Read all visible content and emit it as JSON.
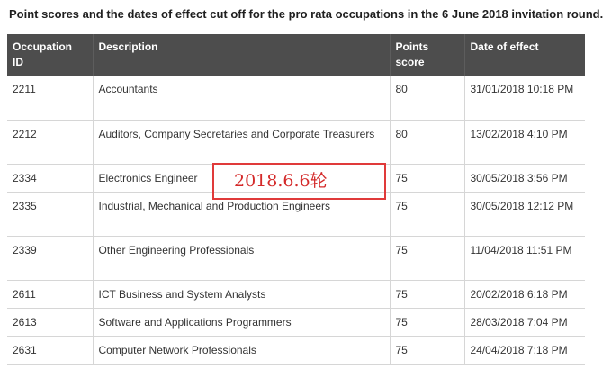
{
  "caption": "Point scores and the dates of effect cut off for the pro rata occupations in the 6 June 2018 invitation round.",
  "table": {
    "headers": {
      "occupation_id_line1": "Occupation",
      "occupation_id_line2": "ID",
      "description": "Description",
      "points_line1": "Points",
      "points_line2": "score",
      "date": "Date of effect"
    },
    "rows": [
      {
        "id": "2211",
        "description": "Accountants",
        "points": "80",
        "date": "31/01/2018 10:18 PM"
      },
      {
        "id": "2212",
        "description": "Auditors, Company Secretaries and Corporate Treasurers",
        "points": "80",
        "date": "13/02/2018 4:10 PM"
      },
      {
        "id": "2334",
        "description": "Electronics Engineer",
        "points": "75",
        "date": "30/05/2018 3:56 PM"
      },
      {
        "id": "2335",
        "description": "Industrial, Mechanical and Production Engineers",
        "points": "75",
        "date": "30/05/2018 12:12 PM"
      },
      {
        "id": "2339",
        "description": "Other Engineering Professionals",
        "points": "75",
        "date": "11/04/2018 11:51 PM"
      },
      {
        "id": "2611",
        "description": "ICT Business and System Analysts",
        "points": "75",
        "date": "20/02/2018 6:18 PM"
      },
      {
        "id": "2613",
        "description": "Software and Applications Programmers",
        "points": "75",
        "date": "28/03/2018 7:04 PM"
      },
      {
        "id": "2631",
        "description": "Computer Network Professionals",
        "points": "75",
        "date": "24/04/2018 7:18 PM"
      }
    ]
  },
  "annotation": {
    "text": "2018.6.6轮",
    "color": "#e03a3a"
  }
}
